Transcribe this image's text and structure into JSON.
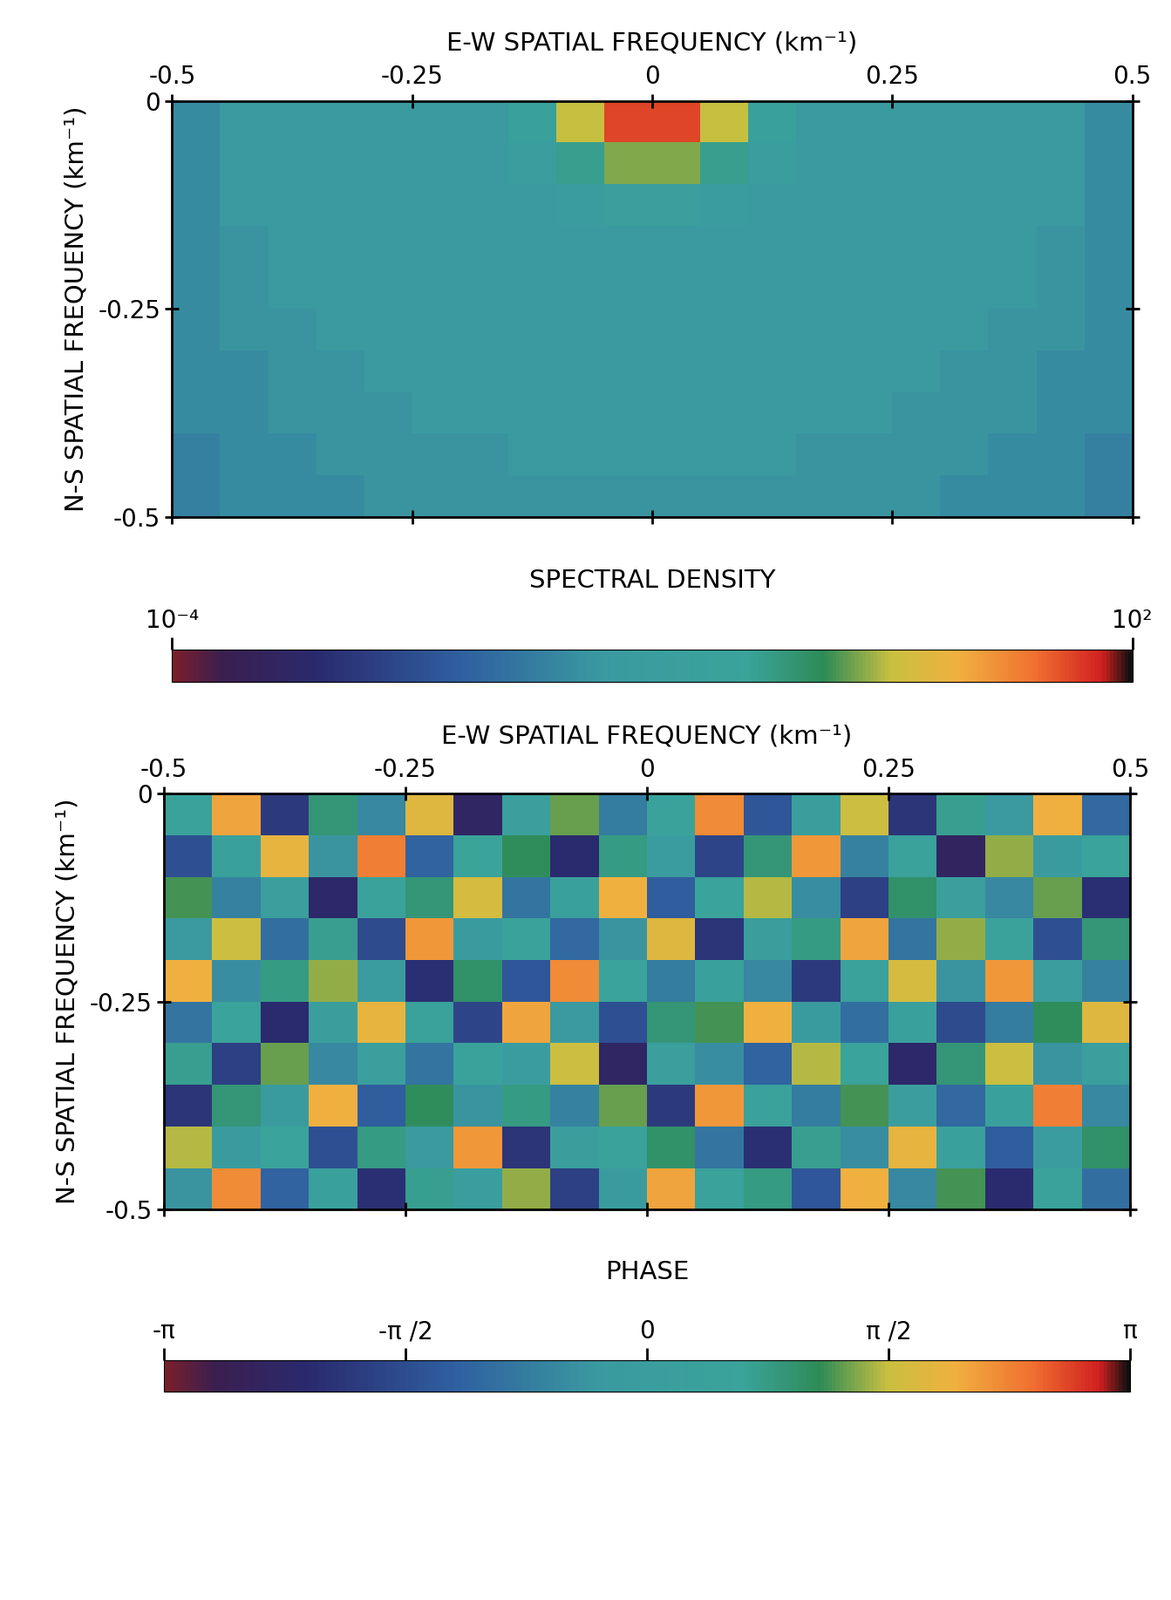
{
  "chart_data": [
    {
      "type": "heatmap",
      "x_label": "E-W SPATIAL FREQUENCY (km⁻¹)",
      "y_label": "N-S SPATIAL FREQUENCY (km⁻¹)",
      "xlim": [
        -0.5,
        0.5
      ],
      "xticks": [
        -0.5,
        -0.25,
        0,
        0.25,
        0.5
      ],
      "ylim": [
        -0.5,
        0
      ],
      "yticks": [
        0,
        -0.25,
        -0.5
      ],
      "cells": [
        [
          0.03,
          0.05,
          0.05,
          0.05,
          0.05,
          0.05,
          0.05,
          0.2,
          3,
          40,
          40,
          3,
          0.2,
          0.05,
          0.05,
          0.05,
          0.05,
          0.05,
          0.05,
          0.03
        ],
        [
          0.03,
          0.05,
          0.05,
          0.05,
          0.05,
          0.05,
          0.05,
          0.1,
          0.5,
          2,
          2,
          0.5,
          0.1,
          0.05,
          0.05,
          0.05,
          0.05,
          0.05,
          0.05,
          0.03
        ],
        [
          0.03,
          0.05,
          0.05,
          0.05,
          0.05,
          0.05,
          0.05,
          0.05,
          0.08,
          0.15,
          0.15,
          0.08,
          0.05,
          0.05,
          0.05,
          0.05,
          0.05,
          0.05,
          0.05,
          0.03
        ],
        [
          0.03,
          0.04,
          0.05,
          0.05,
          0.05,
          0.05,
          0.05,
          0.05,
          0.05,
          0.05,
          0.05,
          0.05,
          0.05,
          0.05,
          0.05,
          0.05,
          0.05,
          0.05,
          0.04,
          0.03
        ],
        [
          0.03,
          0.04,
          0.05,
          0.05,
          0.05,
          0.05,
          0.05,
          0.05,
          0.05,
          0.05,
          0.05,
          0.05,
          0.05,
          0.05,
          0.05,
          0.05,
          0.05,
          0.05,
          0.04,
          0.03
        ],
        [
          0.03,
          0.04,
          0.04,
          0.05,
          0.05,
          0.05,
          0.05,
          0.05,
          0.05,
          0.05,
          0.05,
          0.05,
          0.05,
          0.05,
          0.05,
          0.05,
          0.05,
          0.04,
          0.04,
          0.03
        ],
        [
          0.03,
          0.03,
          0.04,
          0.04,
          0.05,
          0.05,
          0.05,
          0.05,
          0.05,
          0.05,
          0.05,
          0.05,
          0.05,
          0.05,
          0.05,
          0.05,
          0.04,
          0.04,
          0.03,
          0.03
        ],
        [
          0.03,
          0.03,
          0.04,
          0.04,
          0.04,
          0.05,
          0.05,
          0.05,
          0.05,
          0.05,
          0.05,
          0.05,
          0.05,
          0.05,
          0.05,
          0.04,
          0.04,
          0.04,
          0.03,
          0.03
        ],
        [
          0.02,
          0.03,
          0.03,
          0.04,
          0.04,
          0.04,
          0.04,
          0.05,
          0.05,
          0.05,
          0.05,
          0.05,
          0.05,
          0.04,
          0.04,
          0.04,
          0.04,
          0.03,
          0.03,
          0.02
        ],
        [
          0.02,
          0.03,
          0.03,
          0.03,
          0.04,
          0.04,
          0.04,
          0.04,
          0.04,
          0.04,
          0.04,
          0.04,
          0.04,
          0.04,
          0.04,
          0.04,
          0.03,
          0.03,
          0.03,
          0.02
        ]
      ],
      "colorbar": {
        "label": "SPECTRAL DENSITY",
        "range": [
          0.0001,
          100
        ],
        "log": true,
        "ticks": [
          {
            "value": 0.0001,
            "label": "10⁻⁴"
          },
          {
            "value": 100,
            "label": "10²"
          }
        ]
      }
    },
    {
      "type": "heatmap",
      "x_label": "E-W SPATIAL FREQUENCY (km⁻¹)",
      "y_label": "N-S SPATIAL FREQUENCY (km⁻¹)",
      "xlim": [
        -0.5,
        0.5
      ],
      "xticks": [
        -0.5,
        -0.25,
        0,
        0.25,
        0.5
      ],
      "ylim": [
        -0.5,
        0
      ],
      "yticks": [
        0,
        -0.25,
        -0.5
      ],
      "cells": [
        [
          0.4,
          2.1,
          -1.9,
          0.9,
          -0.6,
          1.8,
          -2.4,
          0.2,
          1.3,
          -0.8,
          0.5,
          2.3,
          -1.4,
          0.1,
          1.6,
          -2.0,
          0.7,
          -0.3,
          2.0,
          -1.1
        ],
        [
          -1.5,
          0.3,
          1.9,
          -0.4,
          2.4,
          -1.2,
          0.6,
          1.1,
          -2.2,
          0.8,
          -0.1,
          -1.7,
          0.9,
          2.2,
          -0.7,
          0.4,
          -2.5,
          1.4,
          -0.2,
          0.6
        ],
        [
          1.2,
          -0.7,
          0.2,
          -2.3,
          0.5,
          0.9,
          1.7,
          -0.9,
          0.3,
          2.0,
          -1.3,
          0.6,
          1.5,
          -0.5,
          -1.8,
          1.0,
          0.2,
          -0.6,
          1.3,
          -2.1
        ],
        [
          -0.3,
          1.6,
          -1.0,
          0.7,
          -1.6,
          2.2,
          -0.2,
          0.4,
          -1.1,
          -0.4,
          1.8,
          -2.0,
          0.1,
          0.8,
          2.1,
          -0.9,
          1.4,
          0.5,
          -1.5,
          0.9
        ],
        [
          2.0,
          -0.5,
          0.8,
          1.4,
          -0.1,
          -2.1,
          1.0,
          -1.4,
          2.3,
          0.6,
          -0.8,
          0.3,
          -0.6,
          -1.9,
          0.4,
          1.7,
          -0.4,
          2.2,
          0.0,
          -0.7
        ],
        [
          -0.9,
          0.6,
          -2.2,
          0.1,
          1.9,
          0.4,
          -1.7,
          2.1,
          -0.3,
          -1.5,
          0.9,
          1.2,
          2.0,
          -0.2,
          -1.0,
          0.3,
          -1.6,
          -0.8,
          1.1,
          1.8
        ],
        [
          0.7,
          -1.8,
          1.3,
          -0.6,
          0.2,
          -0.9,
          0.5,
          -0.1,
          1.6,
          -2.4,
          0.2,
          -0.5,
          -1.2,
          1.5,
          0.6,
          -2.3,
          0.9,
          1.6,
          -0.4,
          0.2
        ],
        [
          -2.0,
          0.9,
          -0.2,
          2.0,
          -1.3,
          1.1,
          -0.4,
          0.8,
          -0.7,
          1.3,
          -1.9,
          2.2,
          0.4,
          -0.8,
          1.2,
          0.0,
          -1.1,
          0.3,
          2.4,
          -0.6
        ],
        [
          1.5,
          -0.2,
          0.6,
          -1.5,
          0.8,
          -0.3,
          2.2,
          -2.0,
          0.1,
          0.5,
          1.0,
          -0.9,
          -2.1,
          0.7,
          -0.5,
          1.9,
          0.3,
          -1.3,
          -0.1,
          1.0
        ],
        [
          -0.4,
          2.3,
          -1.2,
          0.3,
          -2.1,
          0.7,
          0.0,
          1.4,
          -1.8,
          -0.2,
          2.1,
          0.4,
          0.8,
          -1.4,
          2.0,
          -0.6,
          1.2,
          -2.2,
          0.5,
          -1.0
        ]
      ],
      "colorbar": {
        "label": "PHASE",
        "range": [
          -3.14159,
          3.14159
        ],
        "log": false,
        "ticks": [
          {
            "value": -3.14159,
            "label": "-π"
          },
          {
            "value": -1.5708,
            "label": "-π /2"
          },
          {
            "value": 0,
            "label": "0"
          },
          {
            "value": 1.5708,
            "label": "π /2"
          },
          {
            "value": 3.14159,
            "label": "π"
          }
        ]
      }
    }
  ]
}
